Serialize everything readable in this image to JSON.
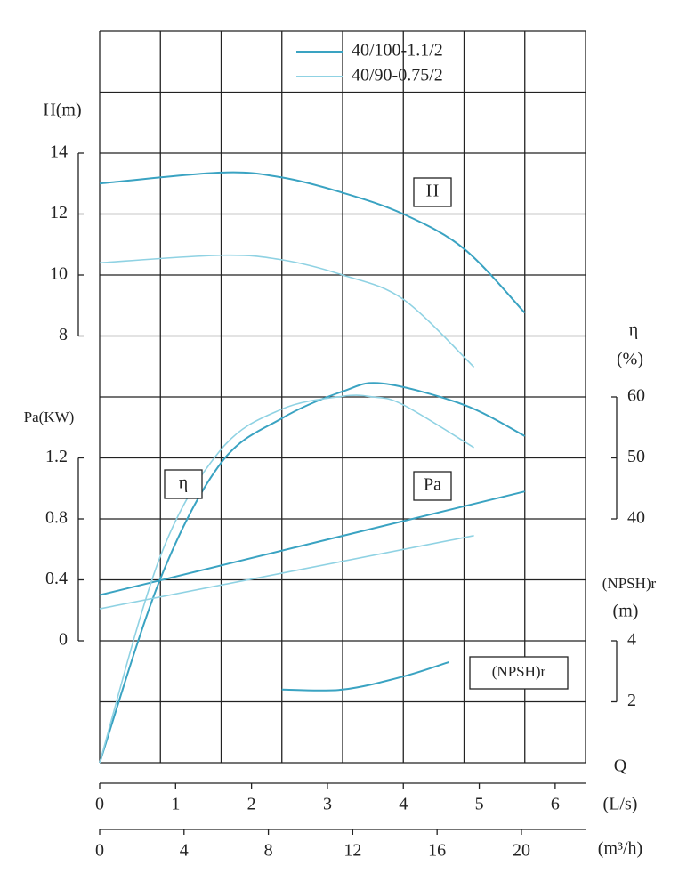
{
  "chart_data": {
    "type": "line",
    "xlabel": "Q",
    "xunit": "(L/s)",
    "xlim": [
      0,
      6.4
    ],
    "xticks": [
      0,
      1,
      2,
      3,
      4,
      5,
      6
    ],
    "x2unit": "(m³/h)",
    "x2lim": [
      0,
      23.04
    ],
    "x2ticks": [
      0,
      4,
      8,
      12,
      16,
      20
    ],
    "y_axes": [
      {
        "id": "H",
        "label": "H(m)",
        "curve_label": "H",
        "ylim": [
          -6,
          18
        ],
        "yticks": [
          8,
          10,
          12,
          14
        ]
      },
      {
        "id": "Pa",
        "label": "Pa(KW)",
        "curve_label": "Pa",
        "ylim": [
          -0.8,
          4
        ],
        "yticks": [
          0,
          0.4,
          0.8,
          1.2
        ]
      },
      {
        "id": "eta",
        "label": "η",
        "unit": "(%)",
        "curve_label": "η",
        "ylim": [
          0,
          120
        ],
        "yticks": [
          40,
          50,
          60
        ]
      },
      {
        "id": "npsh",
        "label": "(NPSH)r",
        "unit": "(m)",
        "curve_label": "(NPSH)r",
        "ylim": [
          0,
          24
        ],
        "yticks": [
          2,
          4
        ]
      }
    ],
    "series": [
      {
        "name": "40/100-1.1/2",
        "color": "#3aa3c2",
        "H": {
          "x": [
            0,
            1.6,
            2.4,
            3.2,
            4.0,
            4.8,
            5.6
          ],
          "values": [
            13.0,
            13.36,
            13.2,
            12.7,
            12.0,
            10.86,
            8.76
          ]
        },
        "eta": {
          "x": [
            0,
            0.8,
            1.6,
            2.4,
            3.2,
            3.73,
            4.8,
            5.6
          ],
          "values": [
            0,
            30.2,
            49.2,
            56.5,
            60.9,
            62.2,
            58.7,
            53.6
          ]
        },
        "Pa": {
          "x": [
            0,
            5.6
          ],
          "values": [
            0.3,
            0.98
          ]
        },
        "npsh": {
          "x": [
            2.4,
            3.2,
            4.0,
            4.6
          ],
          "values": [
            2.4,
            2.4,
            2.83,
            3.3
          ]
        }
      },
      {
        "name": "40/90-0.75/2",
        "color": "#8fd2e3",
        "H": {
          "x": [
            0,
            1.6,
            2.4,
            3.2,
            4.0,
            4.93
          ],
          "values": [
            10.4,
            10.65,
            10.5,
            10.0,
            9.2,
            6.98
          ]
        },
        "eta": {
          "x": [
            0,
            0.8,
            1.6,
            2.4,
            3.2,
            3.6,
            4.0,
            4.93
          ],
          "values": [
            0,
            33.9,
            51.4,
            58.0,
            60.1,
            60.0,
            58.7,
            51.7
          ]
        },
        "Pa": {
          "x": [
            0,
            4.93
          ],
          "values": [
            0.21,
            0.69
          ]
        }
      }
    ],
    "grid": true
  }
}
